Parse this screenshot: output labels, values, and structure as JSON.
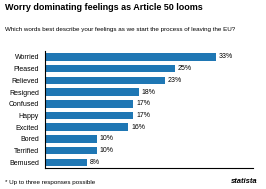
{
  "chart_data": {
    "type": "bar",
    "orientation": "horizontal",
    "title": "Worry dominating feelings as Article 50 looms",
    "subtitle": "Which words best describe your feelings as we start the process of leaving the EU?",
    "categories": [
      "Worried",
      "Pleased",
      "Relieved",
      "Resigned",
      "Confused",
      "Happy",
      "Excited",
      "Bored",
      "Terrified",
      "Bemused"
    ],
    "values": [
      33,
      25,
      23,
      18,
      17,
      17,
      16,
      10,
      10,
      8
    ],
    "value_labels": [
      "33%",
      "25%",
      "23%",
      "18%",
      "17%",
      "17%",
      "16%",
      "10%",
      "10%",
      "8%"
    ],
    "data_labels": true,
    "xlim": [
      0,
      40
    ],
    "tick_labels": "y",
    "grid": false,
    "annotations": [
      "* Up to three responses possible",
      "statista"
    ]
  }
}
